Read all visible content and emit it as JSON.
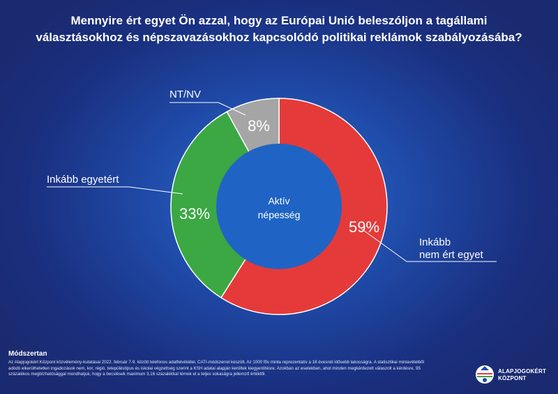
{
  "title": {
    "line1": "Mennyire ért egyet Ön azzal, hogy az Európai Unió beleszóljon a tagállami",
    "line2": "választásokhoz és népszavazásokhoz kapcsolódó politikai reklámok szabályozásába?"
  },
  "chart_data": {
    "type": "pie",
    "style": "donut",
    "center_label": [
      "Aktív",
      "népesség"
    ],
    "slices": [
      {
        "label": [
          "Inkább",
          "nem ért egyet"
        ],
        "value": 59,
        "value_label": "59%",
        "color": "#e53a3a"
      },
      {
        "label": [
          "Inkább egyetért"
        ],
        "value": 33,
        "value_label": "33%",
        "color": "#3ba843"
      },
      {
        "label": [
          "NT/NV"
        ],
        "value": 8,
        "value_label": "8%",
        "color": "#a5a5a5"
      }
    ]
  },
  "methodology": {
    "heading": "Módszertan",
    "text": "Az Alapjogokért Központ közvélemény-kutatásai 2022. február 7-9. között telefonos adatfelvétellel, CATI-módszerrel készült. Az 1000 fős minta reprezentatív a 18 évesnél idősebb lakosságra. A statisztikai mintavételből adódó elkerülhetetlen ingadozások nem, kor, régió, településtípus és iskolai végzettség szerint a KSH adatai alapján kerültek kiegyenlítésre. Azokban az esetekben, ahol minden megkérdezett válaszolt a kérdésre, 95 százalékos megbízhatósággal mondhatjuk, hogy a becslések maximum 3,16 százalékkal térnek el a teljes sokaságra jellemző értéktől."
  },
  "logo": {
    "line1": "ALAPJOGOKÉRT",
    "line2": "KÖZPONT"
  }
}
